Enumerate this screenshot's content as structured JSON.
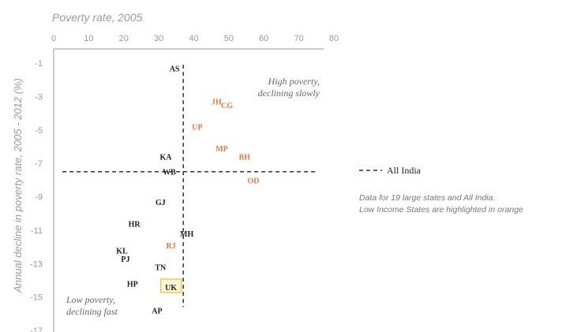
{
  "chart_data": {
    "type": "scatter",
    "xlabel": "Poverty rate, 2005",
    "ylabel": "Annual decline in poverty rate, 2005 - 2012 (%)",
    "xlim": [
      0,
      80
    ],
    "ylim": [
      -17,
      -1
    ],
    "x_ticks": [
      "0",
      "10",
      "20",
      "30",
      "40",
      "50",
      "60",
      "70",
      "80"
    ],
    "y_ticks": [
      "-1",
      "-3",
      "-5",
      "-7",
      "-9",
      "-11",
      "-13",
      "-15",
      "-17"
    ],
    "grid": false,
    "reference_lines": {
      "vertical_x": 37,
      "horizontal_y": -7.5,
      "label": "All India"
    },
    "annotations": {
      "top_right_line1": "High poverty,",
      "top_right_line2": "declining slowly",
      "bottom_left_line1": "Low poverty,",
      "bottom_left_line2": "declining fast"
    },
    "note_line1": "Data for 19 large states and All India.",
    "note_line2": "Low Income States are highlighted in orange",
    "colors": {
      "low_income": "#e07b4a",
      "other": "#222222",
      "box_highlight": "#f2c94c",
      "axis_text": "#9a9a9a"
    },
    "points": [
      {
        "label": "AS",
        "x": 34.5,
        "y": -1.3,
        "low_income": false
      },
      {
        "label": "JH",
        "x": 46.5,
        "y": -3.3,
        "low_income": true
      },
      {
        "label": "CG",
        "x": 49.5,
        "y": -3.5,
        "low_income": true
      },
      {
        "label": "UP",
        "x": 41.0,
        "y": -4.8,
        "low_income": true
      },
      {
        "label": "MP",
        "x": 48.0,
        "y": -6.1,
        "low_income": true
      },
      {
        "label": "BH",
        "x": 54.5,
        "y": -6.6,
        "low_income": true
      },
      {
        "label": "KA",
        "x": 32.0,
        "y": -6.6,
        "low_income": false
      },
      {
        "label": "WB",
        "x": 33.0,
        "y": -7.5,
        "low_income": false
      },
      {
        "label": "OD",
        "x": 57.0,
        "y": -8.0,
        "low_income": true
      },
      {
        "label": "GJ",
        "x": 30.5,
        "y": -9.3,
        "low_income": false
      },
      {
        "label": "HR",
        "x": 23.0,
        "y": -10.6,
        "low_income": false
      },
      {
        "label": "MH",
        "x": 38.0,
        "y": -11.2,
        "low_income": false
      },
      {
        "label": "RJ",
        "x": 33.5,
        "y": -11.9,
        "low_income": true
      },
      {
        "label": "KL",
        "x": 19.5,
        "y": -12.2,
        "low_income": false
      },
      {
        "label": "PJ",
        "x": 20.5,
        "y": -12.7,
        "low_income": false
      },
      {
        "label": "TN",
        "x": 30.5,
        "y": -13.2,
        "low_income": false
      },
      {
        "label": "HP",
        "x": 22.5,
        "y": -14.2,
        "low_income": false
      },
      {
        "label": "UK",
        "x": 33.5,
        "y": -14.4,
        "low_income": false,
        "boxed": true
      },
      {
        "label": "AP",
        "x": 29.5,
        "y": -15.8,
        "low_income": false
      }
    ]
  }
}
